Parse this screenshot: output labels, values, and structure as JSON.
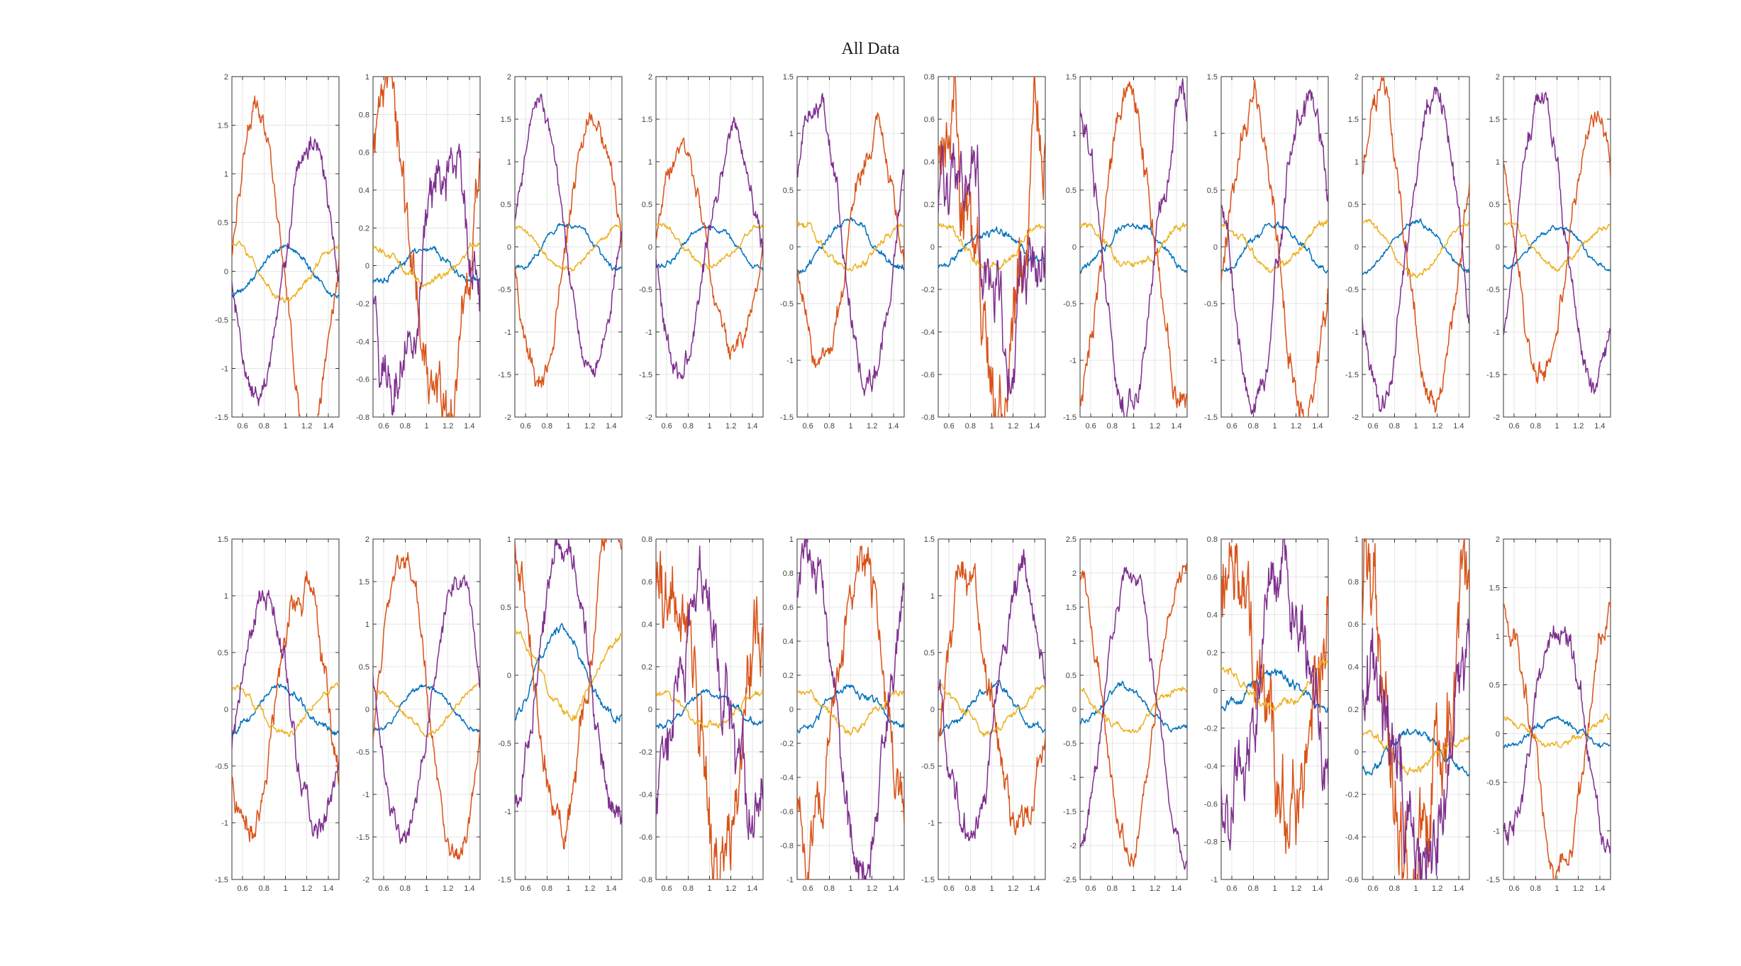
{
  "title": "All Data",
  "colors": {
    "blue": "#0072BD",
    "orange": "#D95319",
    "yellow": "#EDB120",
    "purple": "#7E2F8E",
    "axis": "#333333",
    "grid": "#E6E6E6",
    "tick_label": "#424242",
    "background": "#FFFFFF"
  },
  "chart_data": {
    "type": "line",
    "title": "All Data",
    "layout": {
      "rows": 2,
      "cols": 10
    },
    "grid": true,
    "xlim": [
      0.5,
      1.5
    ],
    "xticks": [
      0.6,
      0.8,
      1,
      1.2,
      1.4
    ],
    "xtick_labels": [
      "0.6",
      "0.8",
      "1",
      "1.2",
      "1.4"
    ],
    "series_model": "y = amp * sin(2*pi*(x-0.5) + phase) + noise",
    "subplots": [
      {
        "ylim": [
          -1.5,
          2
        ],
        "ytick_step": 0.5,
        "series": [
          {
            "name": "blue",
            "color": "blue",
            "amp": 0.25,
            "phase": -1.57,
            "noise": 0.02
          },
          {
            "name": "orange",
            "color": "orange",
            "amp": 1.6,
            "phase": 0.1,
            "noise": 0.07
          },
          {
            "name": "yellow",
            "color": "yellow",
            "amp": 0.27,
            "phase": 1.57,
            "noise": 0.02
          },
          {
            "name": "purple",
            "color": "purple",
            "amp": 1.35,
            "phase": 3.24,
            "noise": 0.07
          }
        ]
      },
      {
        "ylim": [
          -0.8,
          1
        ],
        "ytick_step": 0.2,
        "series": [
          {
            "name": "blue",
            "color": "blue",
            "amp": 0.1,
            "phase": -1.57,
            "noise": 0.012
          },
          {
            "name": "orange",
            "color": "orange",
            "amp": 0.85,
            "phase": 0.75,
            "noise": 0.1
          },
          {
            "name": "yellow",
            "color": "yellow",
            "amp": 0.1,
            "phase": 1.57,
            "noise": 0.012
          },
          {
            "name": "purple",
            "color": "purple",
            "amp": 0.62,
            "phase": 3.45,
            "noise": 0.09
          }
        ]
      },
      {
        "ylim": [
          -2,
          2
        ],
        "ytick_step": 0.5,
        "series": [
          {
            "name": "blue",
            "color": "blue",
            "amp": 0.28,
            "phase": -1.57,
            "noise": 0.02
          },
          {
            "name": "orange",
            "color": "orange",
            "amp": 1.5,
            "phase": 3.3,
            "noise": 0.08
          },
          {
            "name": "yellow",
            "color": "yellow",
            "amp": 0.25,
            "phase": 1.57,
            "noise": 0.02
          },
          {
            "name": "purple",
            "color": "purple",
            "amp": 1.55,
            "phase": 0.15,
            "noise": 0.07
          }
        ]
      },
      {
        "ylim": [
          -2,
          2
        ],
        "ytick_step": 0.5,
        "series": [
          {
            "name": "blue",
            "color": "blue",
            "amp": 0.25,
            "phase": -1.57,
            "noise": 0.02
          },
          {
            "name": "orange",
            "color": "orange",
            "amp": 1.15,
            "phase": 0.1,
            "noise": 0.07
          },
          {
            "name": "yellow",
            "color": "yellow",
            "amp": 0.25,
            "phase": 1.57,
            "noise": 0.02
          },
          {
            "name": "purple",
            "color": "purple",
            "amp": 1.45,
            "phase": 3.25,
            "noise": 0.08
          }
        ]
      },
      {
        "ylim": [
          -1.5,
          1.5
        ],
        "ytick_step": 0.5,
        "series": [
          {
            "name": "blue",
            "color": "blue",
            "amp": 0.2,
            "phase": -1.57,
            "noise": 0.02
          },
          {
            "name": "orange",
            "color": "orange",
            "amp": 1.05,
            "phase": 3.3,
            "noise": 0.07
          },
          {
            "name": "yellow",
            "color": "yellow",
            "amp": 0.2,
            "phase": 1.57,
            "noise": 0.02
          },
          {
            "name": "purple",
            "color": "purple",
            "amp": 1.2,
            "phase": 0.5,
            "noise": 0.07
          }
        ]
      },
      {
        "ylim": [
          -0.8,
          0.8
        ],
        "ytick_step": 0.2,
        "series": [
          {
            "name": "blue",
            "color": "blue",
            "amp": 0.08,
            "phase": -1.57,
            "noise": 0.012
          },
          {
            "name": "orange",
            "color": "orange",
            "amp": 0.55,
            "phase": 1.0,
            "noise": 0.13
          },
          {
            "name": "yellow",
            "color": "yellow",
            "amp": 0.1,
            "phase": 1.57,
            "noise": 0.012
          },
          {
            "name": "purple",
            "color": "purple",
            "amp": 0.48,
            "phase": 0.35,
            "noise": 0.11
          }
        ]
      },
      {
        "ylim": [
          -1.5,
          1.5
        ],
        "ytick_step": 0.5,
        "series": [
          {
            "name": "blue",
            "color": "blue",
            "amp": 0.2,
            "phase": -1.57,
            "noise": 0.02
          },
          {
            "name": "orange",
            "color": "orange",
            "amp": 1.35,
            "phase": -1.26,
            "noise": 0.08
          },
          {
            "name": "yellow",
            "color": "yellow",
            "amp": 0.2,
            "phase": 1.57,
            "noise": 0.02
          },
          {
            "name": "purple",
            "color": "purple",
            "amp": 1.3,
            "phase": 1.88,
            "noise": 0.08
          }
        ]
      },
      {
        "ylim": [
          -1.5,
          1.5
        ],
        "ytick_step": 0.5,
        "series": [
          {
            "name": "blue",
            "color": "blue",
            "amp": 0.2,
            "phase": -1.57,
            "noise": 0.02
          },
          {
            "name": "orange",
            "color": "orange",
            "amp": 1.35,
            "phase": -0.3,
            "noise": 0.08
          },
          {
            "name": "yellow",
            "color": "yellow",
            "amp": 0.2,
            "phase": 1.57,
            "noise": 0.02
          },
          {
            "name": "purple",
            "color": "purple",
            "amp": 1.25,
            "phase": 2.84,
            "noise": 0.08
          }
        ]
      },
      {
        "ylim": [
          -2,
          2
        ],
        "ytick_step": 0.5,
        "series": [
          {
            "name": "blue",
            "color": "blue",
            "amp": 0.3,
            "phase": -1.57,
            "noise": 0.02
          },
          {
            "name": "orange",
            "color": "orange",
            "amp": 1.85,
            "phase": 0.5,
            "noise": 0.09
          },
          {
            "name": "yellow",
            "color": "yellow",
            "amp": 0.3,
            "phase": 1.57,
            "noise": 0.02
          },
          {
            "name": "purple",
            "color": "purple",
            "amp": 1.8,
            "phase": 3.64,
            "noise": 0.09
          }
        ]
      },
      {
        "ylim": [
          -2,
          2
        ],
        "ytick_step": 0.5,
        "series": [
          {
            "name": "blue",
            "color": "blue",
            "amp": 0.25,
            "phase": -1.57,
            "noise": 0.02
          },
          {
            "name": "orange",
            "color": "orange",
            "amp": 1.5,
            "phase": 2.51,
            "noise": 0.08
          },
          {
            "name": "yellow",
            "color": "yellow",
            "amp": 0.25,
            "phase": 1.57,
            "noise": 0.02
          },
          {
            "name": "purple",
            "color": "purple",
            "amp": 1.7,
            "phase": -0.63,
            "noise": 0.08
          }
        ]
      },
      {
        "ylim": [
          -1.5,
          1.5
        ],
        "ytick_step": 0.5,
        "series": [
          {
            "name": "blue",
            "color": "blue",
            "amp": 0.2,
            "phase": -1.27,
            "noise": 0.02
          },
          {
            "name": "orange",
            "color": "orange",
            "amp": 1.1,
            "phase": 3.77,
            "noise": 0.08
          },
          {
            "name": "yellow",
            "color": "yellow",
            "amp": 0.2,
            "phase": 1.57,
            "noise": 0.02
          },
          {
            "name": "purple",
            "color": "purple",
            "amp": 1.05,
            "phase": -0.31,
            "noise": 0.07
          }
        ]
      },
      {
        "ylim": [
          -2,
          2
        ],
        "ytick_step": 0.5,
        "series": [
          {
            "name": "blue",
            "color": "blue",
            "amp": 0.25,
            "phase": -1.57,
            "noise": 0.02
          },
          {
            "name": "orange",
            "color": "orange",
            "amp": 1.7,
            "phase": -0.2,
            "noise": 0.08
          },
          {
            "name": "yellow",
            "color": "yellow",
            "amp": 0.25,
            "phase": 1.57,
            "noise": 0.02
          },
          {
            "name": "purple",
            "color": "purple",
            "amp": 1.55,
            "phase": 2.94,
            "noise": 0.08
          }
        ]
      },
      {
        "ylim": [
          -1.5,
          1
        ],
        "ytick_step": 0.5,
        "series": [
          {
            "name": "blue",
            "color": "blue",
            "amp": 0.32,
            "phase": -1.2,
            "noise": 0.02
          },
          {
            "name": "orange",
            "color": "orange",
            "amp": 1.05,
            "phase": 1.9,
            "noise": 0.08
          },
          {
            "name": "yellow",
            "color": "yellow",
            "amp": 0.3,
            "phase": 1.57,
            "noise": 0.02
          },
          {
            "name": "purple",
            "color": "purple",
            "amp": 1.0,
            "phase": 5.04,
            "noise": 0.07
          }
        ]
      },
      {
        "ylim": [
          -0.8,
          0.8
        ],
        "ytick_step": 0.2,
        "series": [
          {
            "name": "blue",
            "color": "blue",
            "amp": 0.07,
            "phase": -1.57,
            "noise": 0.01
          },
          {
            "name": "orange",
            "color": "orange",
            "amp": 0.65,
            "phase": 0.9,
            "noise": 0.12
          },
          {
            "name": "yellow",
            "color": "yellow",
            "amp": 0.07,
            "phase": 1.57,
            "noise": 0.01
          },
          {
            "name": "purple",
            "color": "purple",
            "amp": 0.55,
            "phase": -1.2,
            "noise": 0.1
          }
        ]
      },
      {
        "ylim": [
          -1,
          1
        ],
        "ytick_step": 0.2,
        "series": [
          {
            "name": "blue",
            "color": "blue",
            "amp": 0.12,
            "phase": -1.57,
            "noise": 0.015
          },
          {
            "name": "orange",
            "color": "orange",
            "amp": 0.78,
            "phase": 4.04,
            "noise": 0.09
          },
          {
            "name": "yellow",
            "color": "yellow",
            "amp": 0.1,
            "phase": 1.57,
            "noise": 0.015
          },
          {
            "name": "purple",
            "color": "purple",
            "amp": 0.9,
            "phase": 0.9,
            "noise": 0.08
          }
        ]
      },
      {
        "ylim": [
          -1.5,
          1.5
        ],
        "ytick_step": 0.5,
        "series": [
          {
            "name": "blue",
            "color": "blue",
            "amp": 0.2,
            "phase": -1.57,
            "noise": 0.02
          },
          {
            "name": "orange",
            "color": "orange",
            "amp": 1.15,
            "phase": -0.15,
            "noise": 0.11
          },
          {
            "name": "yellow",
            "color": "yellow",
            "amp": 0.2,
            "phase": 1.57,
            "noise": 0.02
          },
          {
            "name": "purple",
            "color": "purple",
            "amp": 1.1,
            "phase": 2.99,
            "noise": 0.09
          }
        ]
      },
      {
        "ylim": [
          -2.5,
          2.5
        ],
        "ytick_step": 0.5,
        "series": [
          {
            "name": "blue",
            "color": "blue",
            "amp": 0.3,
            "phase": -1.0,
            "noise": 0.03
          },
          {
            "name": "orange",
            "color": "orange",
            "amp": 2.0,
            "phase": 1.77,
            "noise": 0.1
          },
          {
            "name": "yellow",
            "color": "yellow",
            "amp": 0.3,
            "phase": 2.0,
            "noise": 0.03
          },
          {
            "name": "purple",
            "color": "purple",
            "amp": 1.95,
            "phase": -1.37,
            "noise": 0.09
          }
        ]
      },
      {
        "ylim": [
          -1,
          0.8
        ],
        "ytick_step": 0.2,
        "series": [
          {
            "name": "blue",
            "color": "blue",
            "amp": 0.1,
            "phase": -1.57,
            "noise": 0.015
          },
          {
            "name": "orange",
            "color": "orange",
            "amp": 0.65,
            "phase": 0.8,
            "noise": 0.15
          },
          {
            "name": "yellow",
            "color": "yellow",
            "amp": 0.12,
            "phase": 1.57,
            "noise": 0.015
          },
          {
            "name": "purple",
            "color": "purple",
            "amp": 0.55,
            "phase": 4.08,
            "noise": 0.12
          }
        ]
      },
      {
        "ylim": [
          -0.6,
          1
        ],
        "ytick_step": 0.2,
        "series": [
          {
            "name": "blue",
            "color": "blue",
            "amp": 0.08,
            "phase": -1.57,
            "noise": 0.012
          },
          {
            "name": "orange",
            "color": "orange",
            "amp": 0.65,
            "phase": 1.5,
            "noise": 0.16
          },
          {
            "name": "yellow",
            "color": "yellow",
            "amp": 0.08,
            "phase": 1.57,
            "noise": 0.012
          },
          {
            "name": "purple",
            "color": "purple",
            "amp": 0.45,
            "phase": 1.2,
            "noise": 0.13
          }
        ]
      },
      {
        "ylim": [
          -1.5,
          2
        ],
        "ytick_step": 0.5,
        "series": [
          {
            "name": "blue",
            "color": "blue",
            "amp": 0.15,
            "phase": -1.57,
            "noise": 0.02
          },
          {
            "name": "orange",
            "color": "orange",
            "amp": 1.4,
            "phase": 1.45,
            "noise": 0.09
          },
          {
            "name": "yellow",
            "color": "yellow",
            "amp": 0.15,
            "phase": 1.57,
            "noise": 0.02
          },
          {
            "name": "purple",
            "color": "purple",
            "amp": 1.1,
            "phase": 4.59,
            "noise": 0.08
          }
        ]
      }
    ]
  }
}
